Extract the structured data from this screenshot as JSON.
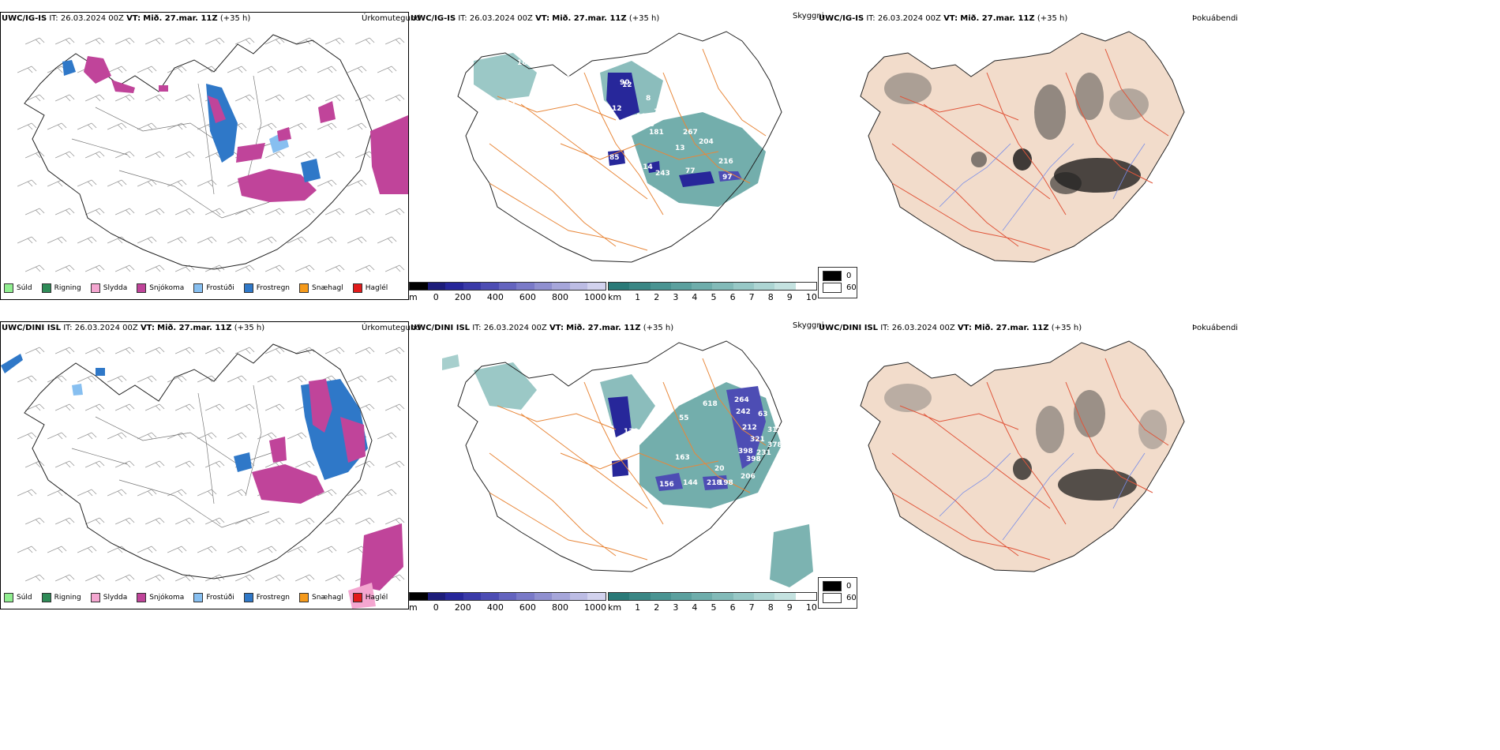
{
  "rows": [
    {
      "model_header": "UWC/IG-IS",
      "it_label": "IT:",
      "it_value": "26.03.2024 00Z",
      "vt_label": "VT:",
      "vt_value": "Mið. 27.mar. 11Z",
      "lead": "(+35 h)"
    },
    {
      "model_header": "UWC/DINI ISL",
      "it_label": "IT:",
      "it_value": "26.03.2024 00Z",
      "vt_label": "VT:",
      "vt_value": "Mið. 27.mar. 11Z",
      "lead": "(+35 h)"
    }
  ],
  "panel_titles": {
    "precip_type": "Úrkomutegund",
    "visibility": "Skyggni",
    "fog_index": "Þokuábendi"
  },
  "precip_legend": [
    {
      "label": "Súld",
      "color": "#90ee90"
    },
    {
      "label": "Rigning",
      "color": "#2e8b57"
    },
    {
      "label": "Slydda",
      "color": "#f4a6d0"
    },
    {
      "label": "Snjókoma",
      "color": "#c0449a"
    },
    {
      "label": "Frostúði",
      "color": "#87bff0"
    },
    {
      "label": "Frostregn",
      "color": "#2f78c8"
    },
    {
      "label": "Snæhagl",
      "color": "#f59a1b"
    },
    {
      "label": "Haglél",
      "color": "#e11b1b"
    }
  ],
  "cloud_base_bar": {
    "unit": "m",
    "ticks": [
      "0",
      "200",
      "400",
      "600",
      "800",
      "1000"
    ],
    "colors": [
      "#000000",
      "#1d1d7a",
      "#27279a",
      "#3a3aa8",
      "#4d4db4",
      "#6464bf",
      "#7a7ac8",
      "#9090d0",
      "#a6a6da",
      "#bcbce4",
      "#d2d2ee"
    ]
  },
  "visibility_bar": {
    "unit": "km",
    "ticks": [
      "1",
      "2",
      "3",
      "4",
      "5",
      "6",
      "7",
      "8",
      "9",
      "10"
    ],
    "colors": [
      "#2a7a78",
      "#3a8785",
      "#4a9492",
      "#5ba09e",
      "#6eadab",
      "#82bab8",
      "#97c8c6",
      "#add5d3",
      "#c4e2e0",
      "#ffffff"
    ]
  },
  "fog_legend": {
    "items": [
      {
        "label": "0",
        "color": "#000000"
      },
      {
        "label": "60",
        "color": "#ffffff"
      }
    ]
  },
  "vis_labels_top": [
    "18",
    "22",
    "13",
    "99",
    "12",
    "8",
    "12",
    "195",
    "16",
    "218",
    "181",
    "267",
    "204",
    "13",
    "85",
    "114",
    "243",
    "77",
    "216",
    "97",
    "90",
    "50"
  ],
  "vis_labels_bottom": [
    "618",
    "264",
    "242",
    "212",
    "321",
    "63",
    "317",
    "398",
    "398",
    "231",
    "378",
    "20",
    "206",
    "218",
    "198",
    "156",
    "144",
    "163",
    "130",
    "55"
  ],
  "colors": {
    "snow": "#c0449a",
    "frz_rain": "#2f78c8",
    "frz_drizzle": "#87bff0",
    "vis_teal": "#4a9492",
    "vis_navy": "#27279a",
    "road_orange": "#e8873a",
    "land_fog": "#f2dccb",
    "road_red": "#e0553a",
    "river_blue": "#7a8ee8"
  }
}
